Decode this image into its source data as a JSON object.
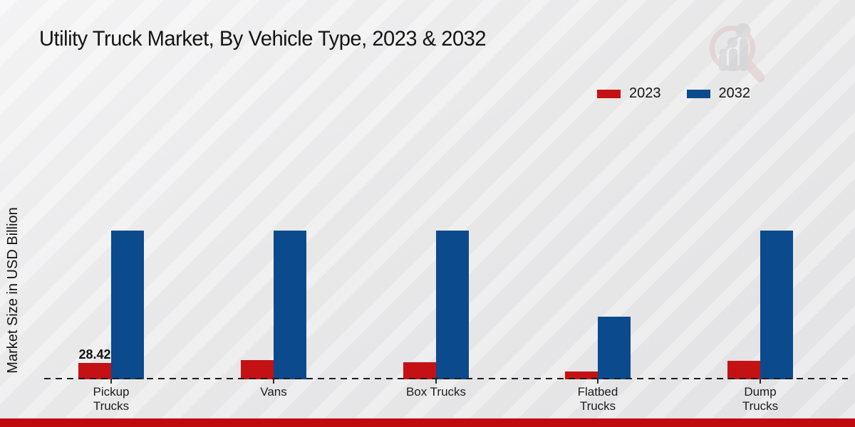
{
  "header": {
    "title": "Utility Truck Market, By Vehicle Type, 2023 & 2032"
  },
  "y_axis": {
    "label": "Market Size in USD Billion"
  },
  "legend": {
    "items": [
      {
        "label": "2023",
        "color": "#c41114"
      },
      {
        "label": "2032",
        "color": "#0b4a8c"
      }
    ]
  },
  "colors": {
    "series_2023": "#c41114",
    "series_2032": "#0b4a8c",
    "bottom_strip": "#c00a10",
    "axis_dash": "#1c1c1c",
    "logo_pink": "#dfc4c5",
    "logo_gray": "#c9c9cb"
  },
  "chart_data": {
    "type": "bar",
    "title": "Utility Truck Market, By Vehicle Type, 2023 & 2032",
    "xlabel": "",
    "ylabel": "Market Size in USD Billion",
    "categories": [
      "Pickup Trucks",
      "Vans",
      "Box Trucks",
      "Flatbed Trucks",
      "Dump Trucks"
    ],
    "category_label_lines": [
      [
        "Pickup",
        "Trucks"
      ],
      [
        "Vans"
      ],
      [
        "Box Trucks"
      ],
      [
        "Flatbed",
        "Trucks"
      ],
      [
        "Dump",
        "Trucks"
      ]
    ],
    "series": [
      {
        "name": "2023",
        "color": "#c41114",
        "values": [
          28.42,
          32.7,
          30.0,
          13.1,
          31.5
        ]
      },
      {
        "name": "2032",
        "color": "#0b4a8c",
        "values": [
          258.0,
          258.0,
          258.0,
          109.0,
          258.0
        ]
      }
    ],
    "bar_value_labels": [
      {
        "series": "2023",
        "category": "Pickup Trucks",
        "text": "28.42"
      }
    ],
    "ylim": [
      0,
      280
    ],
    "grid": false,
    "y_ticks_visible": false,
    "legend_position": "top-right"
  }
}
